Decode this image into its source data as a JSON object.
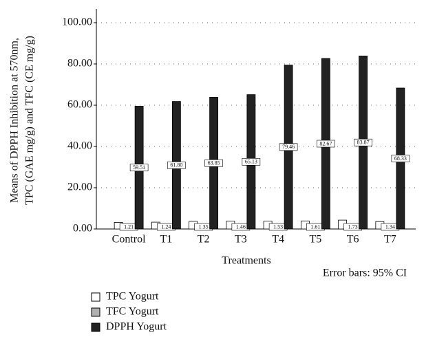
{
  "chart_data": {
    "type": "bar",
    "y_label_lines": [
      "Means of DPPH Inhibition at 570nm,",
      "TPC (GAE mg/g) and TFC (CE mg/g)"
    ],
    "x_label": "Treatments",
    "note": "Error bars: 95% CI",
    "categories": [
      "Control",
      "T1",
      "T2",
      "T3",
      "T4",
      "T5",
      "T6",
      "T7"
    ],
    "series": [
      {
        "name": "TPC Yogurt",
        "color": "#ffffff",
        "values": [
          3.2,
          3.3,
          3.7,
          3.8,
          3.8,
          3.9,
          4.3,
          3.6
        ]
      },
      {
        "name": "TFC Yogurt",
        "color": "#b0b0b0",
        "values": [
          1.21,
          1.24,
          1.35,
          1.46,
          1.53,
          1.61,
          1.73,
          1.34
        ],
        "value_labels": [
          "1.21",
          "1.24",
          "1.35",
          "1.46",
          "1.53",
          "1.61",
          "1.73",
          "1.34"
        ]
      },
      {
        "name": "DPPH Yogurt",
        "color": "#222222",
        "values": [
          59.51,
          61.8,
          63.85,
          65.13,
          79.46,
          82.67,
          83.87,
          68.33
        ],
        "value_labels": [
          "59.51",
          "61.80",
          "63.85",
          "65.13",
          "79.46",
          "82.67",
          "83.87",
          "68.33"
        ]
      }
    ],
    "ylim": [
      0,
      100
    ],
    "yticks": [
      {
        "value": 0,
        "label": "0.00"
      },
      {
        "value": 20,
        "label": "20.00"
      },
      {
        "value": 40,
        "label": "40.00"
      },
      {
        "value": 60,
        "label": "60.00"
      },
      {
        "value": 80,
        "label": "80.00"
      },
      {
        "value": 100,
        "label": "100.00"
      }
    ],
    "grid": true
  }
}
